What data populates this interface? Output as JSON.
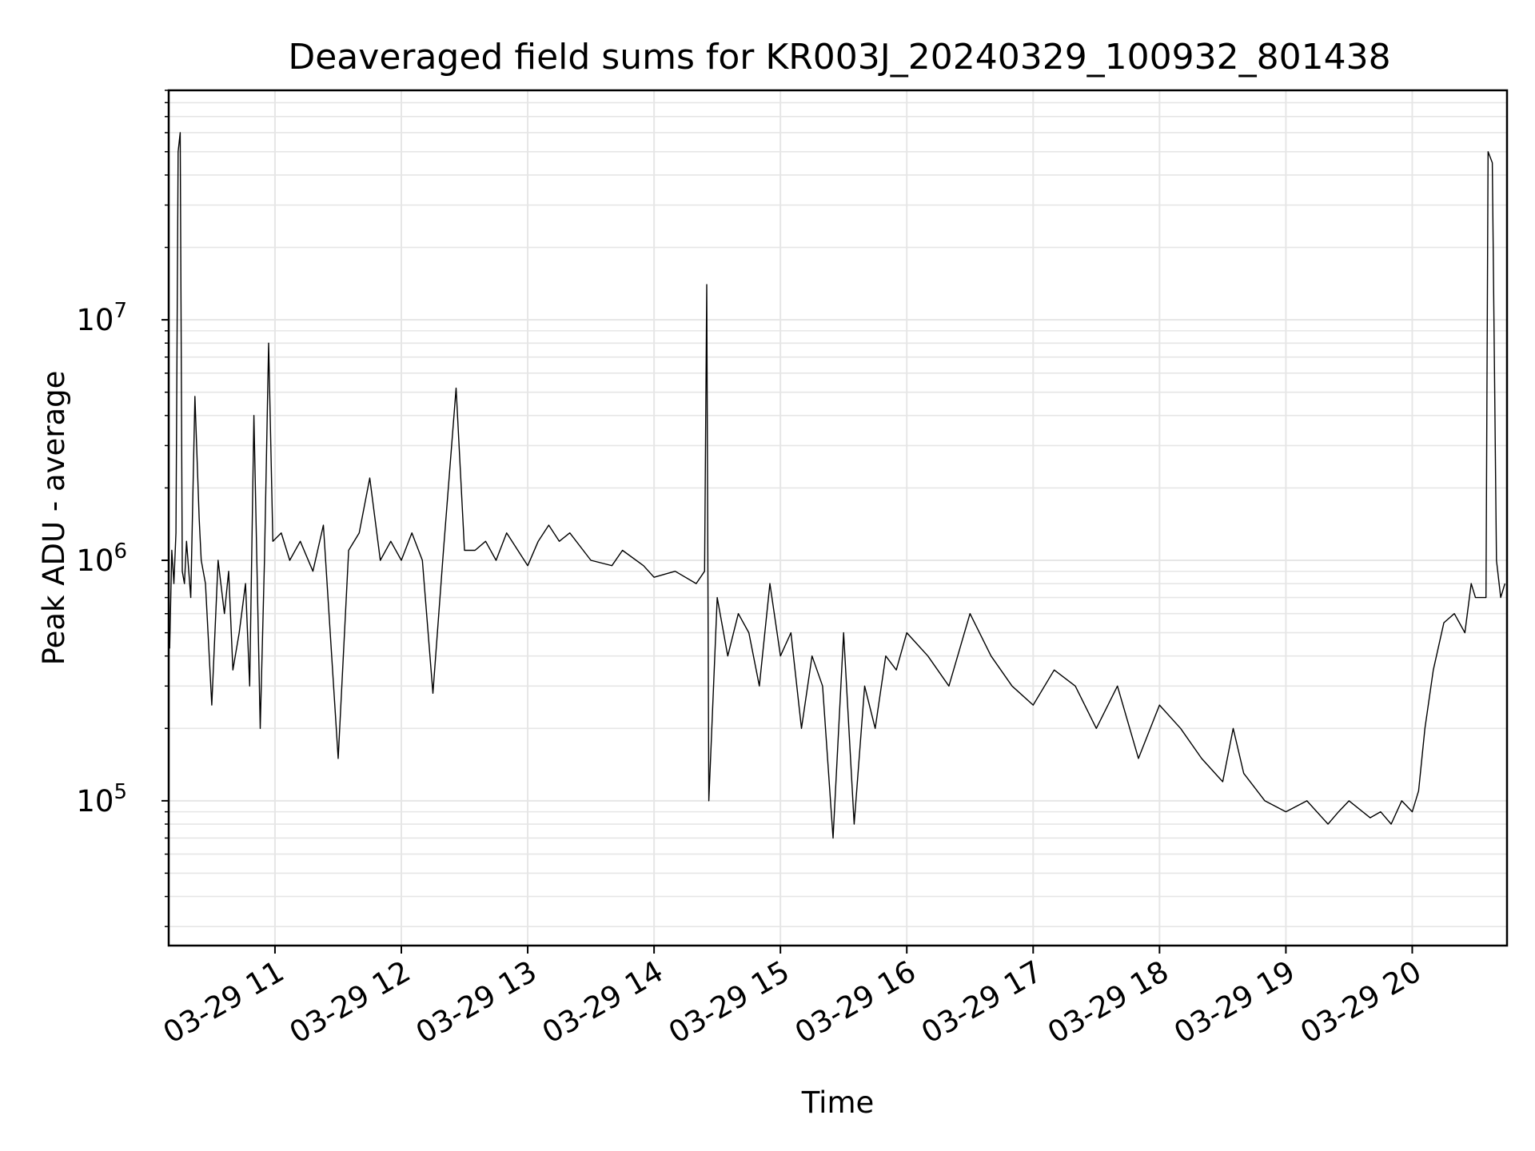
{
  "chart_data": {
    "type": "line",
    "title": "Deaveraged field sums for KR003J_20240329_100932_801438",
    "xlabel": "Time",
    "ylabel": "Peak ADU - average",
    "yscale": "log",
    "ylim": [
      25000,
      90000000
    ],
    "xlim": [
      "2024-03-29 10:09:32",
      "2024-03-29 20:45:00"
    ],
    "grid": true,
    "line_color": "#000000",
    "grid_color": "#e6e6e6",
    "x_ticks": [
      {
        "label": "03-29 11",
        "value": "2024-03-29 11:00"
      },
      {
        "label": "03-29 12",
        "value": "2024-03-29 12:00"
      },
      {
        "label": "03-29 13",
        "value": "2024-03-29 13:00"
      },
      {
        "label": "03-29 14",
        "value": "2024-03-29 14:00"
      },
      {
        "label": "03-29 15",
        "value": "2024-03-29 15:00"
      },
      {
        "label": "03-29 16",
        "value": "2024-03-29 16:00"
      },
      {
        "label": "03-29 17",
        "value": "2024-03-29 17:00"
      },
      {
        "label": "03-29 18",
        "value": "2024-03-29 18:00"
      },
      {
        "label": "03-29 19",
        "value": "2024-03-29 19:00"
      },
      {
        "label": "03-29 20",
        "value": "2024-03-29 20:00"
      }
    ],
    "y_ticks": [
      {
        "base": "10",
        "exp": "5",
        "value": 100000
      },
      {
        "base": "10",
        "exp": "6",
        "value": 1000000
      },
      {
        "base": "10",
        "exp": "7",
        "value": 10000000
      }
    ],
    "series": [
      {
        "x": [
          "2024-03-29 10:10",
          "2024-03-29 10:11",
          "2024-03-29 10:12",
          "2024-03-29 10:13",
          "2024-03-29 10:14",
          "2024-03-29 10:15",
          "2024-03-29 10:16",
          "2024-03-29 10:17",
          "2024-03-29 10:18",
          "2024-03-29 10:20",
          "2024-03-29 10:22",
          "2024-03-29 10:24",
          "2024-03-29 10:25",
          "2024-03-29 10:27",
          "2024-03-29 10:30",
          "2024-03-29 10:33",
          "2024-03-29 10:36",
          "2024-03-29 10:38",
          "2024-03-29 10:40",
          "2024-03-29 10:43",
          "2024-03-29 10:46",
          "2024-03-29 10:48",
          "2024-03-29 10:50",
          "2024-03-29 10:53",
          "2024-03-29 10:55",
          "2024-03-29 10:57",
          "2024-03-29 10:59",
          "2024-03-29 11:03",
          "2024-03-29 11:07",
          "2024-03-29 11:12",
          "2024-03-29 11:18",
          "2024-03-29 11:23",
          "2024-03-29 11:30",
          "2024-03-29 11:35",
          "2024-03-29 11:40",
          "2024-03-29 11:45",
          "2024-03-29 11:50",
          "2024-03-29 11:55",
          "2024-03-29 12:00",
          "2024-03-29 12:05",
          "2024-03-29 12:10",
          "2024-03-29 12:15",
          "2024-03-29 12:20",
          "2024-03-29 12:26",
          "2024-03-29 12:30",
          "2024-03-29 12:35",
          "2024-03-29 12:40",
          "2024-03-29 12:45",
          "2024-03-29 12:50",
          "2024-03-29 13:00",
          "2024-03-29 13:05",
          "2024-03-29 13:10",
          "2024-03-29 13:15",
          "2024-03-29 13:20",
          "2024-03-29 13:30",
          "2024-03-29 13:40",
          "2024-03-29 13:45",
          "2024-03-29 13:55",
          "2024-03-29 14:00",
          "2024-03-29 14:10",
          "2024-03-29 14:20",
          "2024-03-29 14:24",
          "2024-03-29 14:25",
          "2024-03-29 14:26",
          "2024-03-29 14:30",
          "2024-03-29 14:35",
          "2024-03-29 14:40",
          "2024-03-29 14:45",
          "2024-03-29 14:50",
          "2024-03-29 14:55",
          "2024-03-29 15:00",
          "2024-03-29 15:05",
          "2024-03-29 15:10",
          "2024-03-29 15:15",
          "2024-03-29 15:20",
          "2024-03-29 15:25",
          "2024-03-29 15:30",
          "2024-03-29 15:35",
          "2024-03-29 15:40",
          "2024-03-29 15:45",
          "2024-03-29 15:50",
          "2024-03-29 15:55",
          "2024-03-29 16:00",
          "2024-03-29 16:10",
          "2024-03-29 16:20",
          "2024-03-29 16:30",
          "2024-03-29 16:40",
          "2024-03-29 16:50",
          "2024-03-29 17:00",
          "2024-03-29 17:10",
          "2024-03-29 17:20",
          "2024-03-29 17:30",
          "2024-03-29 17:40",
          "2024-03-29 17:50",
          "2024-03-29 18:00",
          "2024-03-29 18:10",
          "2024-03-29 18:20",
          "2024-03-29 18:30",
          "2024-03-29 18:35",
          "2024-03-29 18:40",
          "2024-03-29 18:50",
          "2024-03-29 19:00",
          "2024-03-29 19:10",
          "2024-03-29 19:20",
          "2024-03-29 19:25",
          "2024-03-29 19:30",
          "2024-03-29 19:40",
          "2024-03-29 19:45",
          "2024-03-29 19:50",
          "2024-03-29 19:55",
          "2024-03-29 20:00",
          "2024-03-29 20:03",
          "2024-03-29 20:06",
          "2024-03-29 20:10",
          "2024-03-29 20:15",
          "2024-03-29 20:20",
          "2024-03-29 20:25",
          "2024-03-29 20:28",
          "2024-03-29 20:30",
          "2024-03-29 20:35",
          "2024-03-29 20:36",
          "2024-03-29 20:38",
          "2024-03-29 20:40",
          "2024-03-29 20:42",
          "2024-03-29 20:44"
        ],
        "y": [
          430000,
          1100000,
          800000,
          1300000,
          50000000,
          60000000,
          900000,
          800000,
          1200000,
          700000,
          4800000,
          1500000,
          1000000,
          800000,
          250000,
          1000000,
          600000,
          900000,
          350000,
          500000,
          800000,
          300000,
          4000000,
          200000,
          1000000,
          8000000,
          1200000,
          1300000,
          1000000,
          1200000,
          900000,
          1400000,
          150000,
          1100000,
          1300000,
          2200000,
          1000000,
          1200000,
          1000000,
          1300000,
          1000000,
          280000,
          1100000,
          5200000,
          1100000,
          1100000,
          1200000,
          1000000,
          1300000,
          950000,
          1200000,
          1400000,
          1200000,
          1300000,
          1000000,
          950000,
          1100000,
          950000,
          850000,
          900000,
          800000,
          900000,
          14000000,
          100000,
          700000,
          400000,
          600000,
          500000,
          300000,
          800000,
          400000,
          500000,
          200000,
          400000,
          300000,
          70000,
          500000,
          80000,
          300000,
          200000,
          400000,
          350000,
          500000,
          400000,
          300000,
          600000,
          400000,
          300000,
          250000,
          350000,
          300000,
          200000,
          300000,
          150000,
          250000,
          200000,
          150000,
          120000,
          200000,
          130000,
          100000,
          90000,
          100000,
          80000,
          90000,
          100000,
          85000,
          90000,
          80000,
          100000,
          90000,
          110000,
          200000,
          350000,
          550000,
          600000,
          500000,
          800000,
          700000,
          700000,
          50000000,
          45000000,
          1000000,
          700000,
          800000
        ]
      }
    ]
  }
}
